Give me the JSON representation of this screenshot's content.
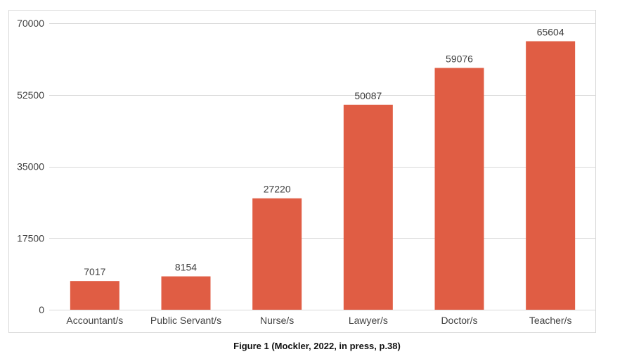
{
  "chart_data": {
    "type": "bar",
    "categories": [
      "Accountant/s",
      "Public Servant/s",
      "Nurse/s",
      "Lawyer/s",
      "Doctor/s",
      "Teacher/s"
    ],
    "values": [
      7017,
      8154,
      27220,
      50087,
      59076,
      65604
    ],
    "data_labels": [
      "7017",
      "8154",
      "27220",
      "50087",
      "59076",
      "65604"
    ],
    "y_ticks": [
      0,
      17500,
      35000,
      52500,
      70000
    ],
    "y_tick_labels": [
      "0",
      "17500",
      "35000",
      "52500",
      "70000"
    ],
    "ylim": [
      0,
      70000
    ],
    "title": "",
    "xlabel": "",
    "ylabel": "",
    "grid": true,
    "legend": "none",
    "bar_color": "#E05D44",
    "grid_color": "#D9D9D9"
  },
  "caption": "Figure 1 (Mockler, 2022, in press, p.38)"
}
